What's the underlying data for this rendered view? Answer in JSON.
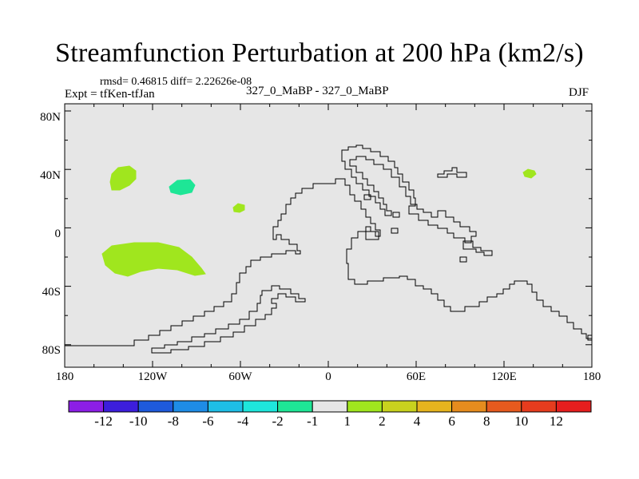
{
  "title": "Streamfunction Perturbation at 200 hPa (km2/s)",
  "stats": "rmsd= 0.46815 diff= 2.22626e-08",
  "experiment": "Expt = tfKen-tfJan",
  "comparison": "327_0_MaBP - 327_0_MaBP",
  "season": "DJF",
  "map": {
    "background_color": "#e6e6e6",
    "lat_ticks": [
      "80N",
      "40N",
      "0",
      "40S",
      "80S"
    ],
    "lon_ticks": [
      "180",
      "120W",
      "60W",
      "0",
      "60E",
      "120E",
      "180"
    ]
  },
  "colorbar": {
    "colors": [
      "#8c1ee6",
      "#3c1edc",
      "#1e5adc",
      "#1e8ce6",
      "#1ebee6",
      "#1ee6dc",
      "#1ee696",
      "#e6e6e6",
      "#a0e61e",
      "#c8d21e",
      "#e6b41e",
      "#e68c1e",
      "#e65a1e",
      "#e63c1e",
      "#e61e1e"
    ],
    "labels": [
      "-12",
      "-10",
      "-8",
      "-6",
      "-4",
      "-2",
      "-1",
      "1",
      "2",
      "4",
      "6",
      "8",
      "10",
      "12"
    ]
  },
  "anomaly_fills": [
    {
      "level": "2",
      "color": "#a0e61e"
    },
    {
      "level": "-2",
      "color": "#1ee696"
    }
  ]
}
